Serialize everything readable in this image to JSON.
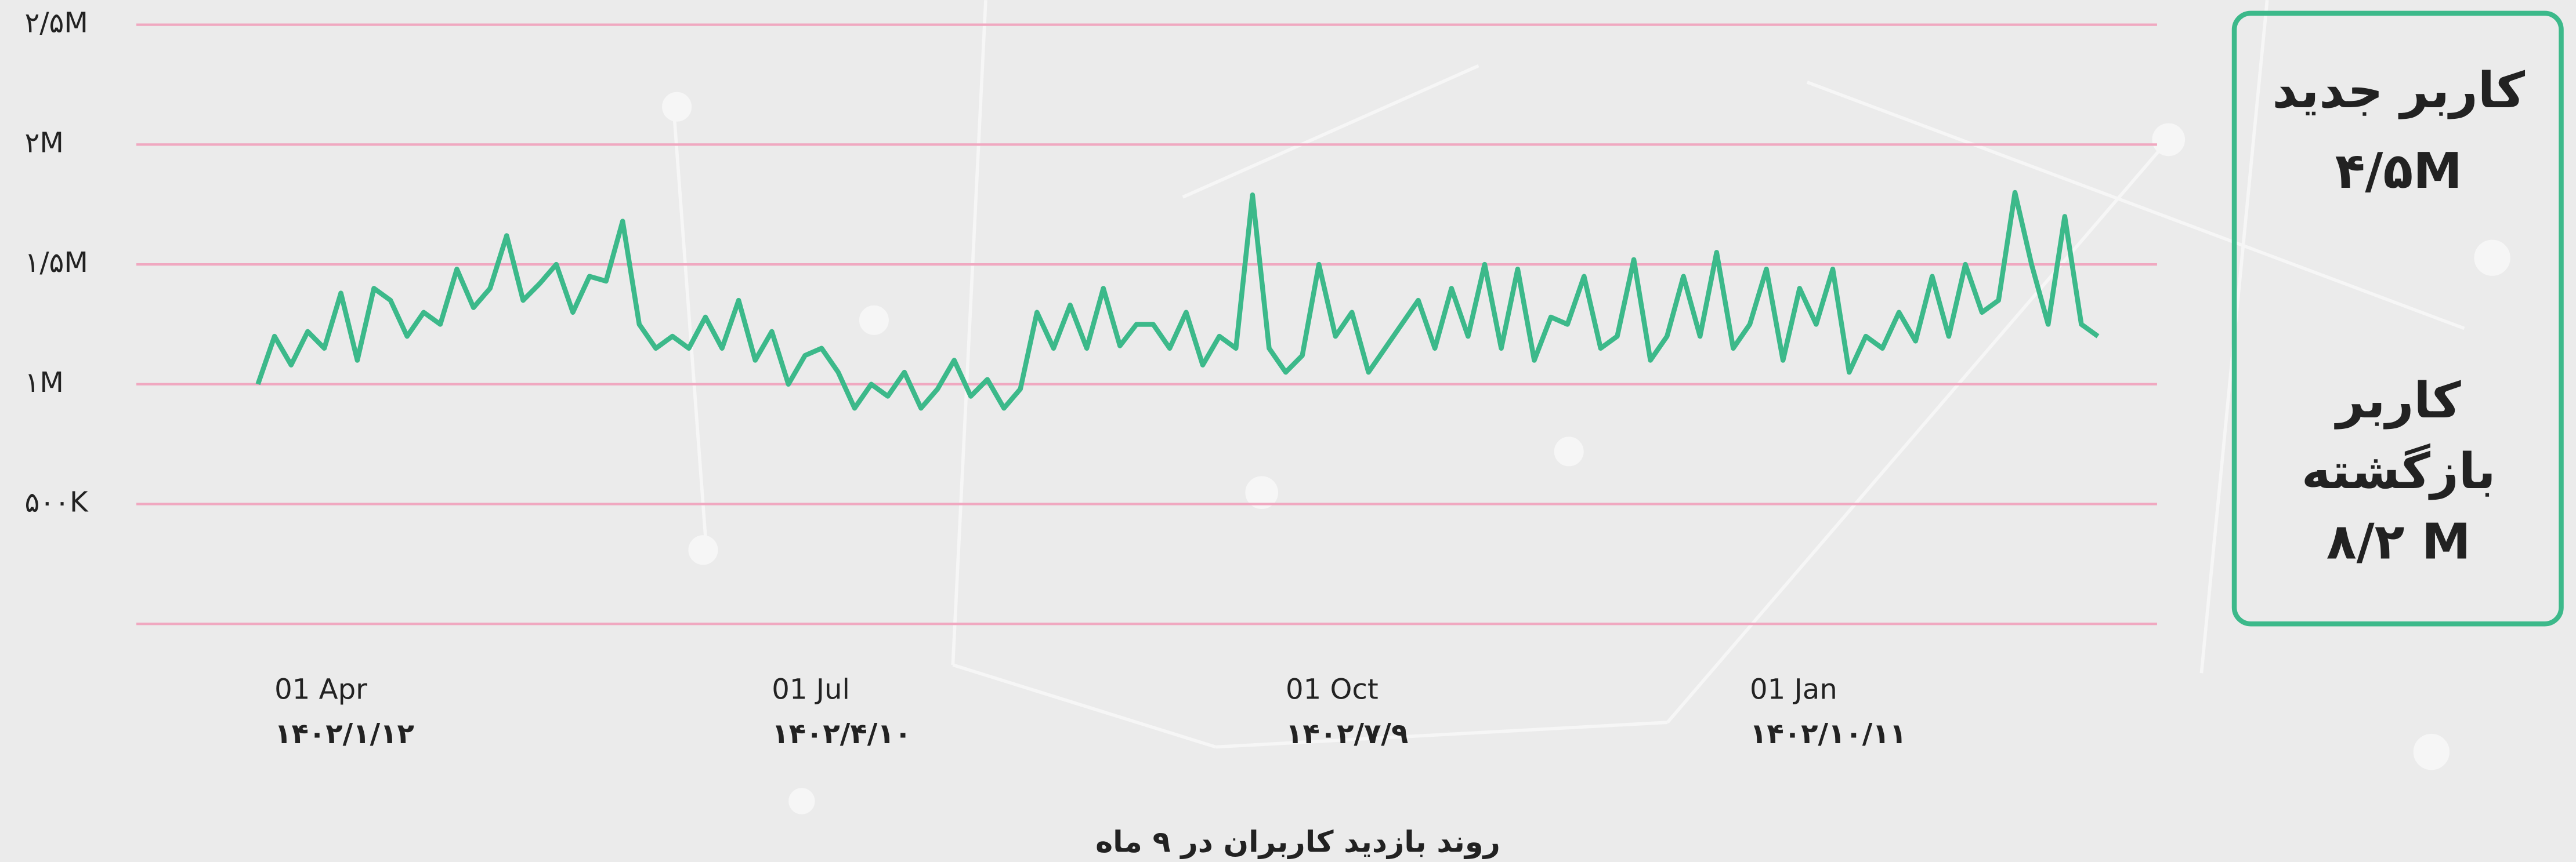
{
  "chart_data": {
    "type": "line",
    "title": "روند بازدید کاربران در ۹ ماه",
    "categories": [
      null,
      "01 Apr",
      null,
      null,
      null,
      null,
      null,
      null,
      null,
      null,
      null,
      null,
      null,
      null,
      null,
      null,
      null,
      null,
      null,
      null,
      null,
      null,
      null,
      null,
      null,
      null,
      null,
      null,
      null,
      null,
      null,
      "01 Jul",
      null,
      null,
      null,
      null,
      null,
      null,
      null,
      null,
      null,
      null,
      null,
      null,
      null,
      null,
      null,
      null,
      null,
      null,
      null,
      null,
      null,
      null,
      null,
      null,
      null,
      null,
      null,
      null,
      null,
      null,
      "01 Oct",
      null,
      null,
      null,
      null,
      null,
      null,
      null,
      null,
      null,
      null,
      null,
      null,
      null,
      null,
      null,
      null,
      null,
      null,
      null,
      null,
      null,
      null,
      null,
      null,
      null,
      null,
      null,
      "01 Jan",
      null,
      null,
      null,
      null,
      null,
      null,
      null,
      null,
      null,
      null,
      null,
      null,
      null,
      null,
      null,
      null,
      null,
      null,
      null,
      null,
      null
    ],
    "categories_secondary": [
      null,
      "۱۴۰۲/۱/۱۲",
      null,
      null,
      null,
      null,
      null,
      null,
      null,
      null,
      null,
      null,
      null,
      null,
      null,
      null,
      null,
      null,
      null,
      null,
      null,
      null,
      null,
      null,
      null,
      null,
      null,
      null,
      null,
      null,
      null,
      "۱۴۰۲/۴/۱۰",
      null,
      null,
      null,
      null,
      null,
      null,
      null,
      null,
      null,
      null,
      null,
      null,
      null,
      null,
      null,
      null,
      null,
      null,
      null,
      null,
      null,
      null,
      null,
      null,
      null,
      null,
      null,
      null,
      null,
      null,
      "۱۴۰۲/۷/۹",
      null,
      null,
      null,
      null,
      null,
      null,
      null,
      null,
      null,
      null,
      null,
      null,
      null,
      null,
      null,
      null,
      null,
      null,
      null,
      null,
      null,
      null,
      null,
      null,
      null,
      null,
      null,
      "۱۴۰۲/۱۰/۱۱",
      null,
      null,
      null,
      null,
      null,
      null,
      null,
      null,
      null,
      null,
      null,
      null,
      null,
      null,
      null,
      null,
      null,
      null,
      null,
      null,
      null
    ],
    "series": [
      {
        "color": "#3cb98a",
        "values": [
          1000000,
          1200000,
          1080000,
          1220000,
          1150000,
          1380000,
          1100000,
          1400000,
          1350000,
          1200000,
          1300000,
          1250000,
          1480000,
          1320000,
          1400000,
          1620000,
          1350000,
          1420000,
          1500000,
          1300000,
          1450000,
          1430000,
          1680000,
          1250000,
          1150000,
          1200000,
          1150000,
          1280000,
          1150000,
          1350000,
          1100000,
          1220000,
          1000000,
          1120000,
          1150000,
          1050000,
          900000,
          1000000,
          950000,
          1050000,
          900000,
          980000,
          1100000,
          950000,
          1020000,
          900000,
          980000,
          1300000,
          1150000,
          1330000,
          1150000,
          1400000,
          1160000,
          1250000,
          1250000,
          1150000,
          1300000,
          1080000,
          1200000,
          1150000,
          1790000,
          1150000,
          1050000,
          1120000,
          1500000,
          1200000,
          1300000,
          1050000,
          1150000,
          1250000,
          1350000,
          1150000,
          1400000,
          1200000,
          1500000,
          1150000,
          1480000,
          1100000,
          1280000,
          1250000,
          1450000,
          1150000,
          1200000,
          1520000,
          1100000,
          1200000,
          1450000,
          1200000,
          1550000,
          1150000,
          1250000,
          1480000,
          1100000,
          1400000,
          1250000,
          1480000,
          1050000,
          1200000,
          1150000,
          1300000,
          1180000,
          1450000,
          1200000,
          1500000,
          1300000,
          1350000,
          1800000,
          1500000,
          1250000,
          1700000,
          1250000,
          1200000
        ]
      }
    ],
    "ylim": [
      0,
      2500000
    ],
    "yticks": [
      {
        "value": 500000,
        "label": "۵۰۰K"
      },
      {
        "value": 1000000,
        "label": "۱M"
      },
      {
        "value": 1500000,
        "label": "۱/۵M"
      },
      {
        "value": 2000000,
        "label": "۲M"
      },
      {
        "value": 2500000,
        "label": "۲/۵M"
      }
    ],
    "grid": true,
    "grid_color": "#f0a8c0"
  },
  "panel": {
    "new_users_label": "کاربر جدید",
    "new_users_value": "۴/۵M",
    "returning_users_label": [
      "کاربر",
      "بازگشته"
    ],
    "returning_users_value": "۸/۲ M"
  }
}
